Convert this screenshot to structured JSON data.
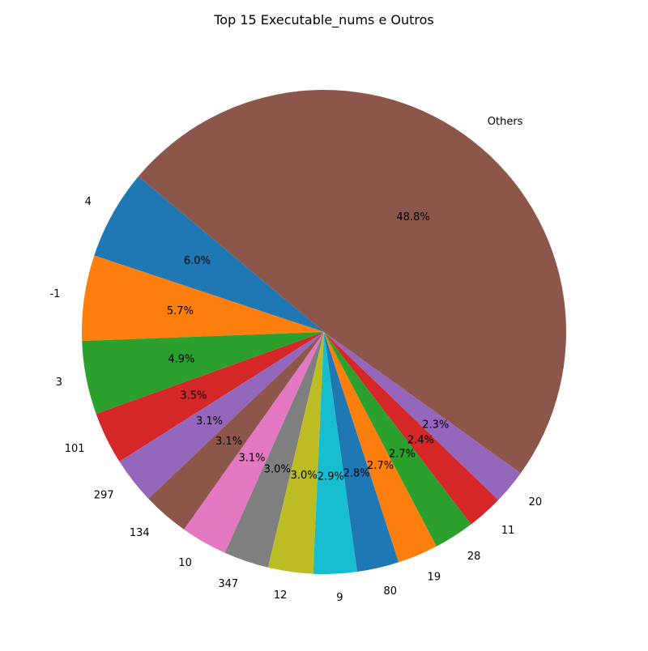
{
  "chart_data": {
    "type": "pie",
    "title": "Top 15 Executable_nums e Outros",
    "slices": [
      {
        "label": "4",
        "pct_label": "6.0%",
        "value": 6.0,
        "color": "#1f77b4"
      },
      {
        "label": "-1",
        "pct_label": "5.7%",
        "value": 5.7,
        "color": "#ff7f0e"
      },
      {
        "label": "3",
        "pct_label": "4.9%",
        "value": 4.9,
        "color": "#2ca02c"
      },
      {
        "label": "101",
        "pct_label": "3.5%",
        "value": 3.5,
        "color": "#d62728"
      },
      {
        "label": "297",
        "pct_label": "3.1%",
        "value": 3.1,
        "color": "#9467bd"
      },
      {
        "label": "134",
        "pct_label": "3.1%",
        "value": 3.1,
        "color": "#8c564b"
      },
      {
        "label": "10",
        "pct_label": "3.1%",
        "value": 3.1,
        "color": "#e377c2"
      },
      {
        "label": "347",
        "pct_label": "3.0%",
        "value": 3.0,
        "color": "#7f7f7f"
      },
      {
        "label": "12",
        "pct_label": "3.0%",
        "value": 3.0,
        "color": "#bcbd22"
      },
      {
        "label": "9",
        "pct_label": "2.9%",
        "value": 2.9,
        "color": "#17becf"
      },
      {
        "label": "80",
        "pct_label": "2.8%",
        "value": 2.8,
        "color": "#1f77b4"
      },
      {
        "label": "19",
        "pct_label": "2.7%",
        "value": 2.7,
        "color": "#ff7f0e"
      },
      {
        "label": "28",
        "pct_label": "2.7%",
        "value": 2.7,
        "color": "#2ca02c"
      },
      {
        "label": "11",
        "pct_label": "2.4%",
        "value": 2.4,
        "color": "#d62728"
      },
      {
        "label": "20",
        "pct_label": "2.3%",
        "value": 2.3,
        "color": "#9467bd"
      },
      {
        "label": "Others",
        "pct_label": "48.8%",
        "value": 48.8,
        "color": "#8c564b"
      }
    ],
    "start_angle_deg": 140,
    "direction": "counterclockwise",
    "legend": "none"
  }
}
